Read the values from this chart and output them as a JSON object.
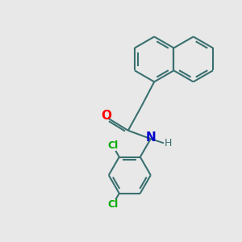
{
  "background_color": "#e8e8e8",
  "bond_color": "#3a7070",
  "bond_width": 1.5,
  "O_color": "#ff0000",
  "N_color": "#0000cc",
  "Cl_color": "#00aa00",
  "figsize": [
    3.0,
    3.0
  ],
  "dpi": 100,
  "xlim": [
    0,
    10
  ],
  "ylim": [
    0,
    10
  ]
}
